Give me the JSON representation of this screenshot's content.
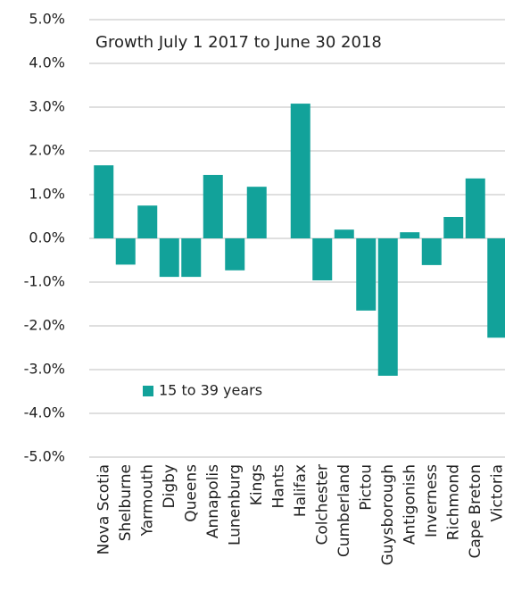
{
  "chart_data": {
    "type": "bar",
    "title": "Growth July 1 2017 to June 30 2018",
    "categories": [
      "Nova Scotia",
      "Shelburne",
      "Yarmouth",
      "Digby",
      "Queens",
      "Annapolis",
      "Lunenburg",
      "Kings",
      "Hants",
      "Halifax",
      "Colchester",
      "Cumberland",
      "Pictou",
      "Guysborough",
      "Antigonish",
      "Inverness",
      "Richmond",
      "Cape Breton",
      "Victoria"
    ],
    "series": [
      {
        "name": "15 to 39 years",
        "color": "#12a29a",
        "values": [
          1.67,
          -0.6,
          0.75,
          -0.88,
          -0.88,
          1.45,
          -0.73,
          1.18,
          0,
          3.08,
          -0.96,
          0.2,
          -1.65,
          -3.14,
          0.14,
          -0.61,
          0.49,
          1.37,
          -2.27
        ]
      }
    ],
    "ylim": [
      -5,
      5
    ],
    "yticks": [
      {
        "value": -5,
        "label": "-5.0%"
      },
      {
        "value": -4,
        "label": "-4.0%"
      },
      {
        "value": -3,
        "label": "-3.0%"
      },
      {
        "value": -2,
        "label": "-2.0%"
      },
      {
        "value": -1,
        "label": "-1.0%"
      },
      {
        "value": 0,
        "label": "0.0%"
      },
      {
        "value": 1,
        "label": "1.0%"
      },
      {
        "value": 2,
        "label": "2.0%"
      },
      {
        "value": 3,
        "label": "3.0%"
      },
      {
        "value": 4,
        "label": "4.0%"
      },
      {
        "value": 5,
        "label": "5.0%"
      }
    ],
    "grid": true,
    "legend_position": "lower left"
  }
}
